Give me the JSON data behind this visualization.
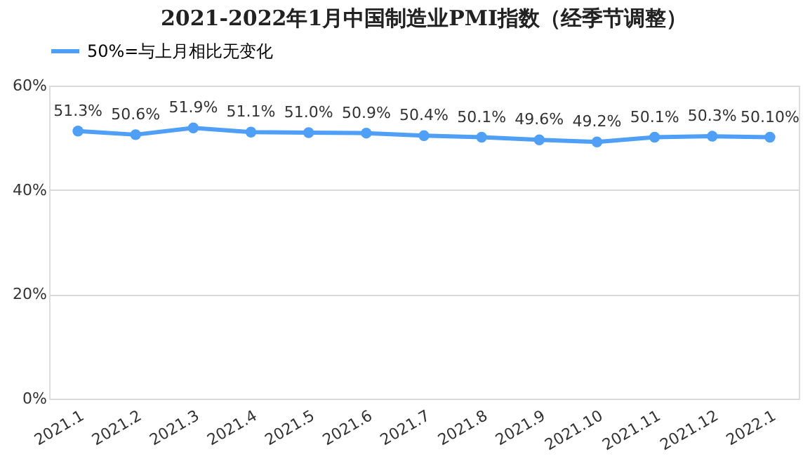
{
  "chart_data": {
    "type": "line",
    "title": "2021-2022年1月中国制造业PMI指数（经季节调整）",
    "categories": [
      "2021.1",
      "2021.2",
      "2021.3",
      "2021.4",
      "2021.5",
      "2021.6",
      "2021.7",
      "2021.8",
      "2021.9",
      "2021.10",
      "2021.11",
      "2021.12",
      "2022.1"
    ],
    "series": [
      {
        "name": "50%=与上月相比无变化",
        "color": "#4e9ff5",
        "values": [
          51.3,
          50.6,
          51.9,
          51.1,
          51.0,
          50.9,
          50.4,
          50.1,
          49.6,
          49.2,
          50.1,
          50.3,
          50.1
        ],
        "value_labels": [
          "51.3%",
          "50.6%",
          "51.9%",
          "51.1%",
          "51.0%",
          "50.9%",
          "50.4%",
          "50.1%",
          "49.6%",
          "49.2%",
          "50.1%",
          "50.3%",
          "50.10%"
        ]
      }
    ],
    "ylim": [
      0,
      60
    ],
    "yticks": [
      {
        "value": 0,
        "label": "0%"
      },
      {
        "value": 20,
        "label": "20%"
      },
      {
        "value": 40,
        "label": "40%"
      },
      {
        "value": 60,
        "label": "60%"
      }
    ],
    "grid": "y",
    "legend": "top",
    "marker": "circle",
    "line_style": "solid"
  }
}
